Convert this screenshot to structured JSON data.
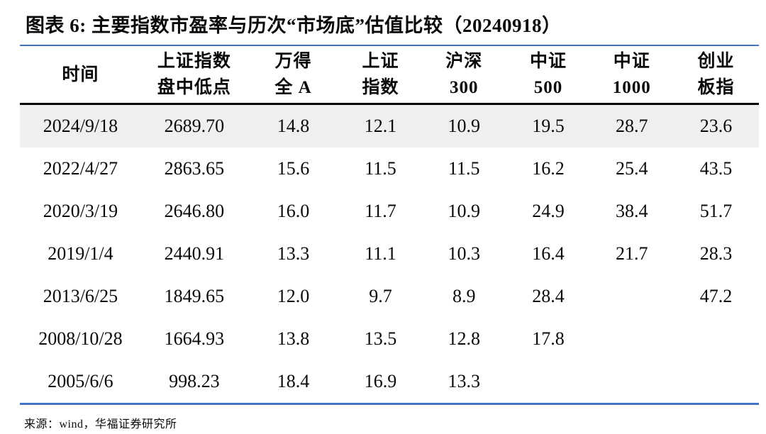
{
  "title": "图表 6:  主要指数市盈率与历次“市场底”估值比较（20240918）",
  "table": {
    "headers": [
      {
        "lines": [
          "时间"
        ]
      },
      {
        "lines": [
          "上证指数",
          "盘中低点"
        ]
      },
      {
        "lines": [
          "万得",
          "全 A"
        ]
      },
      {
        "lines": [
          "上证",
          "指数"
        ]
      },
      {
        "lines": [
          "沪深",
          "300"
        ]
      },
      {
        "lines": [
          "中证",
          "500"
        ]
      },
      {
        "lines": [
          "中证",
          "1000"
        ]
      },
      {
        "lines": [
          "创业",
          "板指"
        ]
      }
    ],
    "rows": [
      [
        "2024/9/18",
        "2689.70",
        "14.8",
        "12.1",
        "10.9",
        "19.5",
        "28.7",
        "23.6"
      ],
      [
        "2022/4/27",
        "2863.65",
        "15.6",
        "11.5",
        "11.5",
        "16.2",
        "25.4",
        "43.5"
      ],
      [
        "2020/3/19",
        "2646.80",
        "16.0",
        "11.7",
        "10.9",
        "24.9",
        "38.4",
        "51.7"
      ],
      [
        "2019/1/4",
        "2440.91",
        "13.3",
        "11.1",
        "10.3",
        "16.4",
        "21.7",
        "28.3"
      ],
      [
        "2013/6/25",
        "1849.65",
        "12.0",
        "9.7",
        "8.9",
        "28.4",
        "",
        "47.2"
      ],
      [
        "2008/10/28",
        "1664.93",
        "13.8",
        "13.5",
        "12.8",
        "17.8",
        "",
        ""
      ],
      [
        "2005/6/6",
        "998.23",
        "18.4",
        "16.9",
        "13.3",
        "",
        "",
        ""
      ]
    ],
    "highlight_row_index": 0
  },
  "source": "来源：wind，华福证券研究所",
  "colors": {
    "accent_blue": "#4472C4",
    "header_rule_black": "#000000",
    "row_highlight_gray": "#EFEFEF",
    "text": "#0a0a0a"
  }
}
